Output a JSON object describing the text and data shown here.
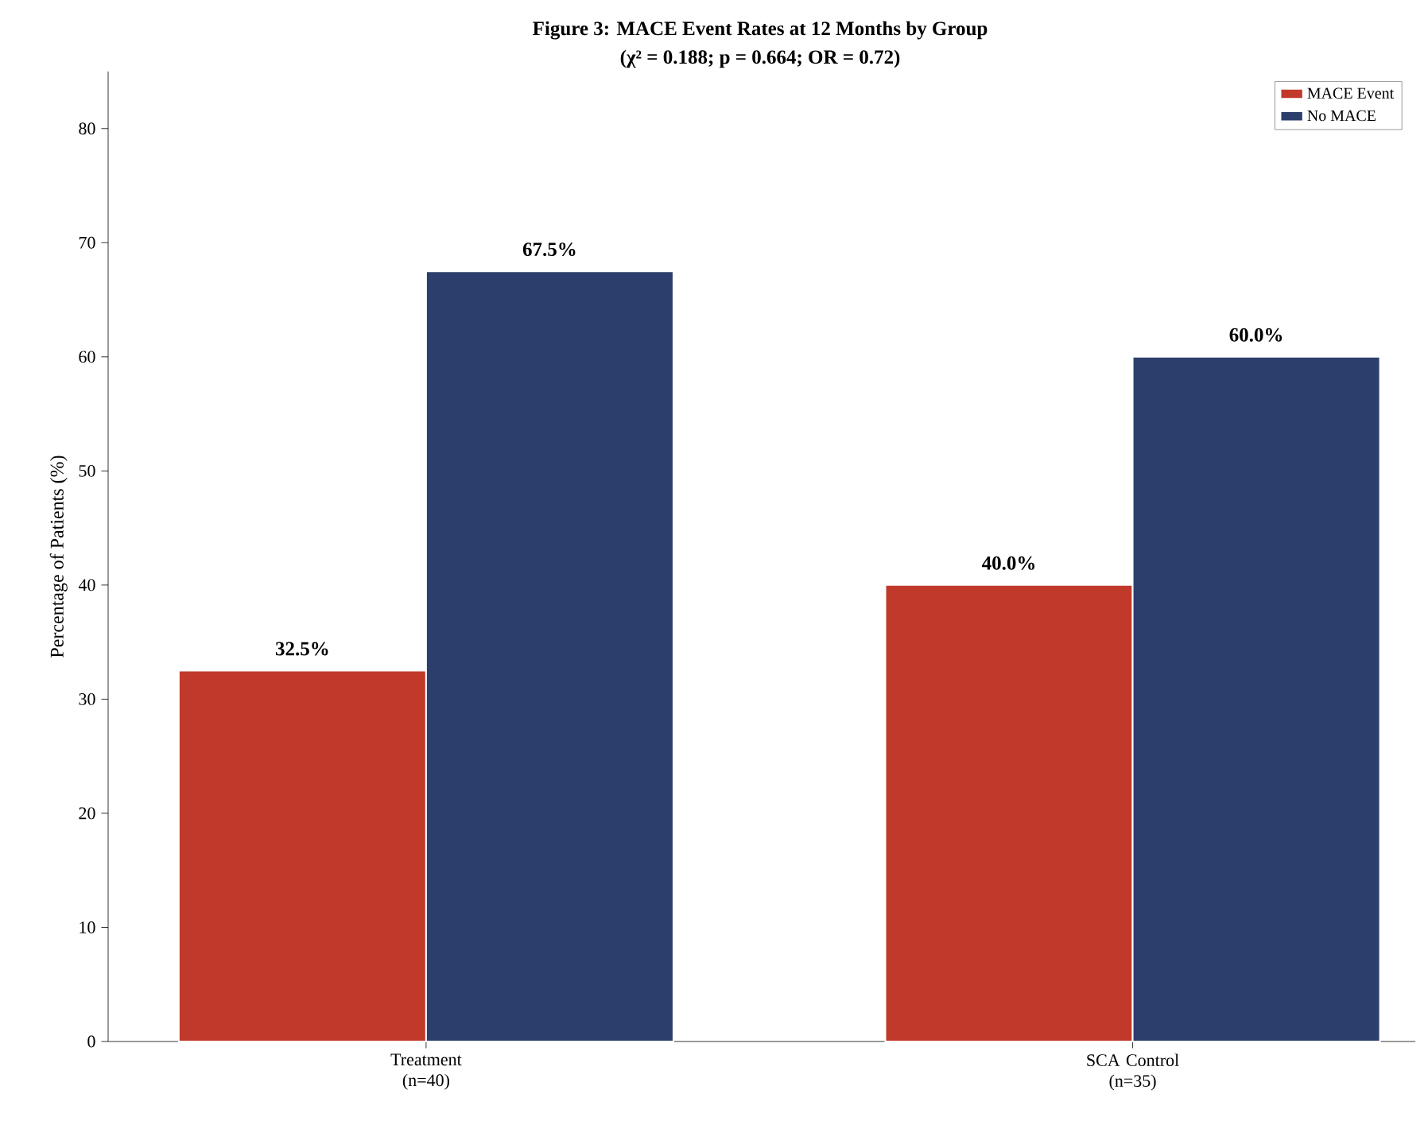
{
  "chart_data": {
    "type": "bar",
    "title": "Figure 3: MACE Event Rates at 12 Months by Group",
    "subtitle": "(χ² = 0.188; p = 0.664; OR = 0.72)",
    "ylabel": "Percentage of Patients (%)",
    "categories": [
      "Treatment (n=40)",
      "SCA Control (n=35)"
    ],
    "series": [
      {
        "name": "MACE Event",
        "color": "#c0392b",
        "values": [
          32.5,
          40.0
        ],
        "value_labels": [
          "32.5%",
          "40.0%"
        ]
      },
      {
        "name": "No MACE",
        "color": "#2c3e6b",
        "values": [
          67.5,
          60.0
        ],
        "value_labels": [
          "67.5%",
          "60.0%"
        ]
      }
    ],
    "ylim": [
      0,
      85
    ],
    "yticks": [
      0,
      10,
      20,
      30,
      40,
      50,
      60,
      70,
      80
    ],
    "grid": false,
    "legend": "top right"
  }
}
